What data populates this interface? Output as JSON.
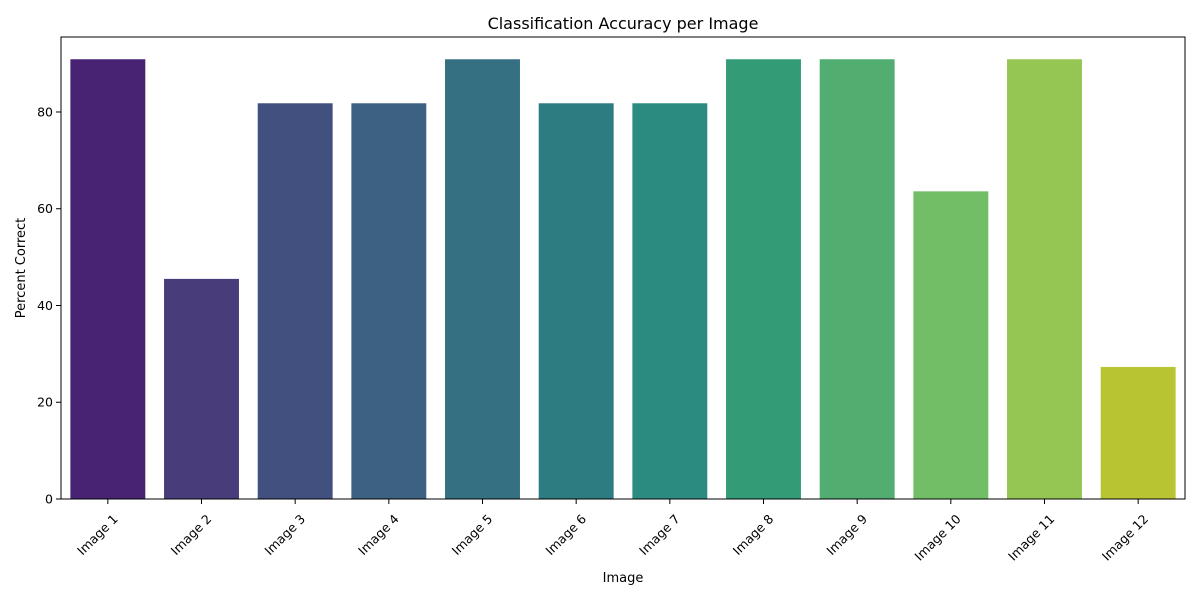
{
  "chart_data": {
    "type": "bar",
    "title": "Classification Accuracy per Image",
    "xlabel": "Image",
    "ylabel": "Percent Correct",
    "categories": [
      "Image 1",
      "Image 2",
      "Image 3",
      "Image 4",
      "Image 5",
      "Image 6",
      "Image 7",
      "Image 8",
      "Image 9",
      "Image 10",
      "Image 11",
      "Image 12"
    ],
    "values": [
      90.9,
      45.5,
      81.8,
      81.8,
      90.9,
      81.8,
      81.8,
      90.9,
      90.9,
      63.6,
      90.9,
      27.3
    ],
    "ylim": [
      0,
      95.5
    ],
    "yticks": [
      0,
      20,
      40,
      60,
      80
    ],
    "grid": false,
    "legend": "none",
    "colors": [
      "#482374",
      "#483d7a",
      "#41507e",
      "#3c6181",
      "#356f82",
      "#2d7c81",
      "#2b8b80",
      "#339b76",
      "#51ad70",
      "#72be67",
      "#95c553",
      "#b9c433"
    ],
    "xtick_rotation": 45
  }
}
